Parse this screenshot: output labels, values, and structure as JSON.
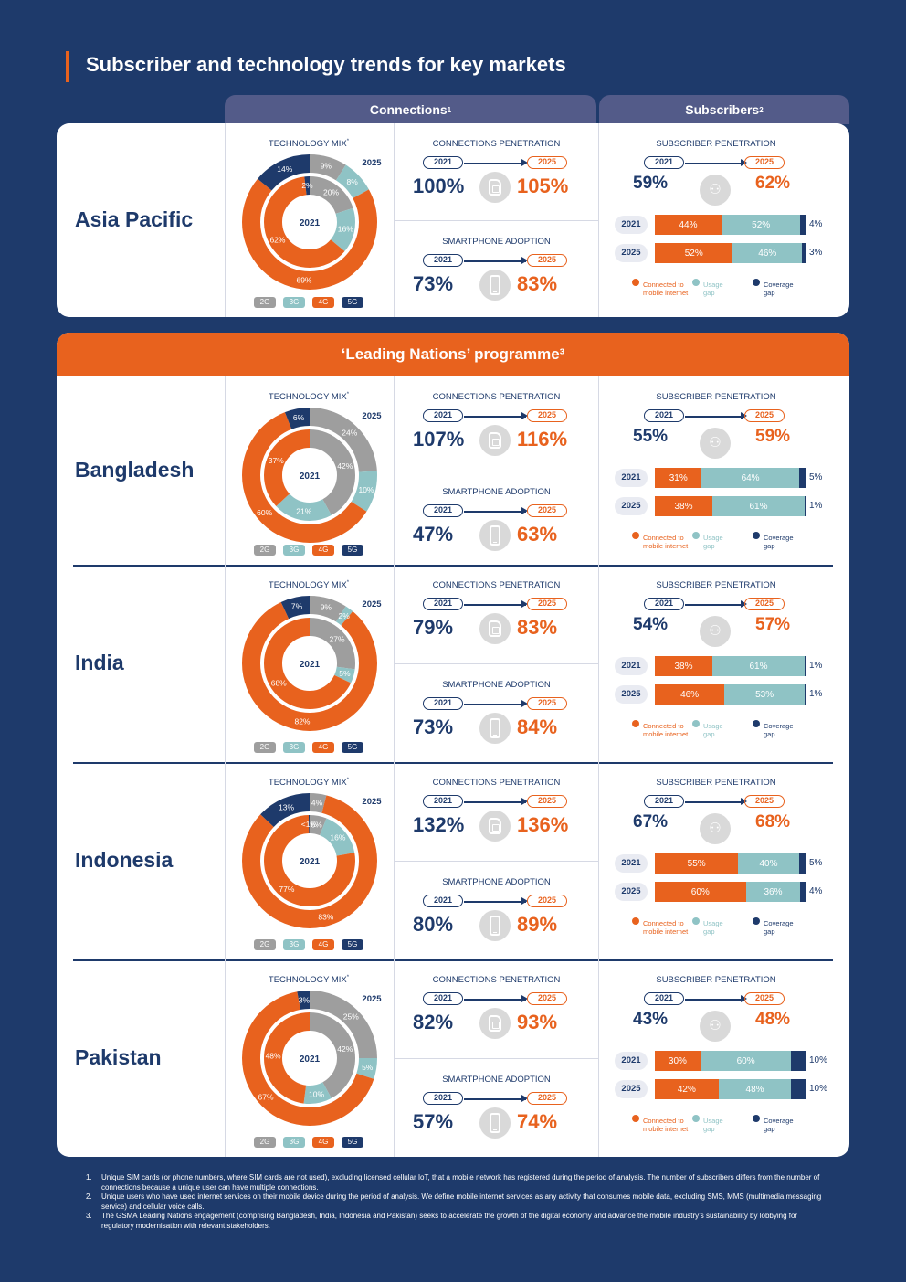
{
  "title": "Subscriber and technology trends for key markets",
  "headers": {
    "connections": "Connections",
    "connections_sup": "1",
    "subscribers": "Subscribers",
    "subscribers_sup": "2"
  },
  "leading_banner": "‘Leading Nations’ programme³",
  "labels": {
    "tech_mix": "TECHNOLOGY MIX",
    "tech_mix_sup": "*",
    "conn_pen": "CONNECTIONS PENETRATION",
    "smart_adopt": "SMARTPHONE ADOPTION",
    "sub_pen": "SUBSCRIBER PENETRATION",
    "year_start": "2021",
    "year_end": "2025",
    "gens": [
      "2G",
      "3G",
      "4G",
      "5G"
    ],
    "legend": [
      {
        "label1": "Connected to",
        "label2": "mobile internet",
        "color": "#e8621e"
      },
      {
        "label1": "Usage",
        "label2": "gap",
        "color": "#8fc3c5"
      },
      {
        "label1": "Coverage",
        "label2": "gap",
        "color": "#1e3a6b"
      }
    ]
  },
  "colors": {
    "g2": "#9e9e9e",
    "g3": "#8fc3c5",
    "g4": "#e8621e",
    "g5": "#1e3a6b"
  },
  "chart_data": [
    {
      "type": "pie",
      "country": "Asia Pacific",
      "tech_mix_2021": {
        "labels": [
          "2G",
          "3G",
          "4G",
          "5G"
        ],
        "values": [
          20,
          16,
          62,
          2
        ],
        "display": [
          "20%",
          "16%",
          "62%",
          "2%"
        ]
      },
      "tech_mix_2025": {
        "labels": [
          "2G",
          "3G",
          "4G",
          "5G"
        ],
        "values": [
          9,
          8,
          69,
          14
        ],
        "display": [
          "9%",
          "8%",
          "69%",
          "14%"
        ]
      },
      "connections_penetration": {
        "2021": "100%",
        "2025": "105%"
      },
      "smartphone_adoption": {
        "2021": "73%",
        "2025": "83%"
      },
      "subscriber_penetration": {
        "2021": "59%",
        "2025": "62%"
      },
      "subscriber_breakdown": [
        {
          "year": "2021",
          "connected": 44,
          "usage_gap": 52,
          "coverage_gap": 4
        },
        {
          "year": "2025",
          "connected": 52,
          "usage_gap": 46,
          "coverage_gap": 3
        }
      ]
    },
    {
      "type": "pie",
      "country": "Bangladesh",
      "tech_mix_2021": {
        "labels": [
          "2G",
          "3G",
          "4G",
          "5G"
        ],
        "values": [
          42,
          21,
          37,
          0
        ],
        "display": [
          "42%",
          "21%",
          "37%",
          ""
        ]
      },
      "tech_mix_2025": {
        "labels": [
          "2G",
          "3G",
          "4G",
          "5G"
        ],
        "values": [
          24,
          10,
          60,
          6
        ],
        "display": [
          "24%",
          "10%",
          "60%",
          "6%"
        ]
      },
      "connections_penetration": {
        "2021": "107%",
        "2025": "116%"
      },
      "smartphone_adoption": {
        "2021": "47%",
        "2025": "63%"
      },
      "subscriber_penetration": {
        "2021": "55%",
        "2025": "59%"
      },
      "subscriber_breakdown": [
        {
          "year": "2021",
          "connected": 31,
          "usage_gap": 64,
          "coverage_gap": 5
        },
        {
          "year": "2025",
          "connected": 38,
          "usage_gap": 61,
          "coverage_gap": 1
        }
      ]
    },
    {
      "type": "pie",
      "country": "India",
      "tech_mix_2021": {
        "labels": [
          "2G",
          "3G",
          "4G",
          "5G"
        ],
        "values": [
          27,
          5,
          68,
          0
        ],
        "display": [
          "27%",
          "5%",
          "68%",
          ""
        ]
      },
      "tech_mix_2025": {
        "labels": [
          "2G",
          "3G",
          "4G",
          "5G"
        ],
        "values": [
          9,
          2,
          82,
          7
        ],
        "display": [
          "9%",
          "2%",
          "82%",
          "7%"
        ]
      },
      "connections_penetration": {
        "2021": "79%",
        "2025": "83%"
      },
      "smartphone_adoption": {
        "2021": "73%",
        "2025": "84%"
      },
      "subscriber_penetration": {
        "2021": "54%",
        "2025": "57%"
      },
      "subscriber_breakdown": [
        {
          "year": "2021",
          "connected": 38,
          "usage_gap": 61,
          "coverage_gap": 1
        },
        {
          "year": "2025",
          "connected": 46,
          "usage_gap": 53,
          "coverage_gap": 1
        }
      ]
    },
    {
      "type": "pie",
      "country": "Indonesia",
      "tech_mix_2021": {
        "labels": [
          "2G",
          "3G",
          "4G",
          "5G"
        ],
        "values": [
          6,
          16,
          77,
          0.5
        ],
        "display": [
          "6%",
          "16%",
          "77%",
          "<1%"
        ]
      },
      "tech_mix_2025": {
        "labels": [
          "2G",
          "3G",
          "4G",
          "5G"
        ],
        "values": [
          4,
          0,
          83,
          13
        ],
        "display": [
          "4%",
          "",
          "83%",
          "13%"
        ]
      },
      "connections_penetration": {
        "2021": "132%",
        "2025": "136%"
      },
      "smartphone_adoption": {
        "2021": "80%",
        "2025": "89%"
      },
      "subscriber_penetration": {
        "2021": "67%",
        "2025": "68%"
      },
      "subscriber_breakdown": [
        {
          "year": "2021",
          "connected": 55,
          "usage_gap": 40,
          "coverage_gap": 5
        },
        {
          "year": "2025",
          "connected": 60,
          "usage_gap": 36,
          "coverage_gap": 4
        }
      ]
    },
    {
      "type": "pie",
      "country": "Pakistan",
      "tech_mix_2021": {
        "labels": [
          "2G",
          "3G",
          "4G",
          "5G"
        ],
        "values": [
          42,
          10,
          48,
          0
        ],
        "display": [
          "42%",
          "10%",
          "48%",
          ""
        ]
      },
      "tech_mix_2025": {
        "labels": [
          "2G",
          "3G",
          "4G",
          "5G"
        ],
        "values": [
          25,
          5,
          67,
          3
        ],
        "display": [
          "25%",
          "5%",
          "67%",
          "3%"
        ]
      },
      "connections_penetration": {
        "2021": "82%",
        "2025": "93%"
      },
      "smartphone_adoption": {
        "2021": "57%",
        "2025": "74%"
      },
      "subscriber_penetration": {
        "2021": "43%",
        "2025": "48%"
      },
      "subscriber_breakdown": [
        {
          "year": "2021",
          "connected": 30,
          "usage_gap": 60,
          "coverage_gap": 10
        },
        {
          "year": "2025",
          "connected": 42,
          "usage_gap": 48,
          "coverage_gap": 10
        }
      ]
    }
  ],
  "footnotes": [
    {
      "num": "1.",
      "text": "Unique SIM cards (or phone numbers, where SIM cards are not used), excluding licensed cellular IoT, that a mobile network has registered during the period of analysis. The number of subscribers differs from the number of connections because a unique user can have multiple connections."
    },
    {
      "num": "2.",
      "text": "Unique users who have used internet services on their mobile device during the period of analysis. We define mobile internet services as any activity that consumes mobile data, excluding SMS, MMS (multimedia messaging service) and cellular voice calls."
    },
    {
      "num": "3.",
      "text": "The GSMA Leading Nations engagement (comprising Bangladesh, India, Indonesia and Pakistan) seeks to accelerate the growth of the digital economy and advance the mobile industry’s sustainability by lobbying for regulatory modernisation with relevant stakeholders."
    }
  ]
}
